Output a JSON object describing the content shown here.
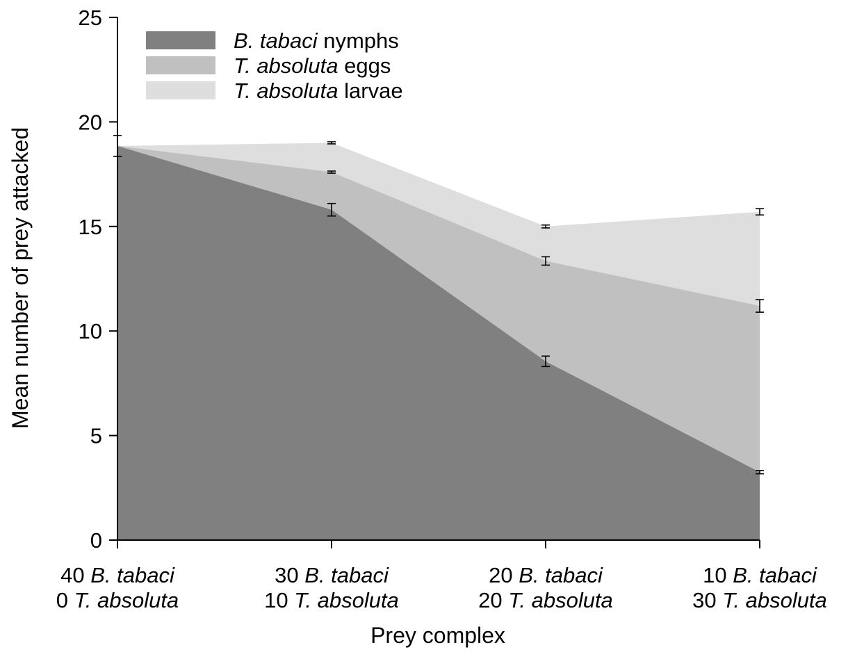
{
  "chart_data": {
    "type": "area",
    "stacked": true,
    "xlabel": "Prey complex",
    "ylabel": "Mean number of prey attacked",
    "ylim": [
      0,
      25
    ],
    "yticks": [
      "0",
      "5",
      "10",
      "15",
      "20",
      "25"
    ],
    "grid": false,
    "legend_position": "top-left",
    "categories": [
      {
        "line1_num": "40",
        "line1_name": "B. tabaci",
        "line2_num": "0",
        "line2_name": "T. absoluta"
      },
      {
        "line1_num": "30",
        "line1_name": "B. tabaci",
        "line2_num": "10",
        "line2_name": "T. absoluta"
      },
      {
        "line1_num": "20",
        "line1_name": "B. tabaci",
        "line2_num": "20",
        "line2_name": "T. absoluta"
      },
      {
        "line1_num": "10",
        "line1_name": "B. tabaci",
        "line2_num": "30",
        "line2_name": "T. absoluta"
      }
    ],
    "series": [
      {
        "name_italic": "B. tabaci",
        "name_rest": " nymphs",
        "color": "#808080",
        "cumulative_values": [
          18.85,
          15.8,
          8.55,
          3.25
        ],
        "errors": [
          0.5,
          0.3,
          0.25,
          0.08
        ]
      },
      {
        "name_italic": "T. absoluta",
        "name_rest": " eggs",
        "color": "#c0c0c0",
        "cumulative_values": [
          18.85,
          17.6,
          13.35,
          11.2
        ],
        "errors": [
          0.0,
          0.05,
          0.2,
          0.3
        ]
      },
      {
        "name_italic": "T. absoluta",
        "name_rest": " larvae",
        "color": "#dedede",
        "cumulative_values": [
          18.85,
          19.0,
          15.0,
          15.7
        ],
        "errors": [
          0.0,
          0.05,
          0.07,
          0.15
        ]
      }
    ]
  }
}
